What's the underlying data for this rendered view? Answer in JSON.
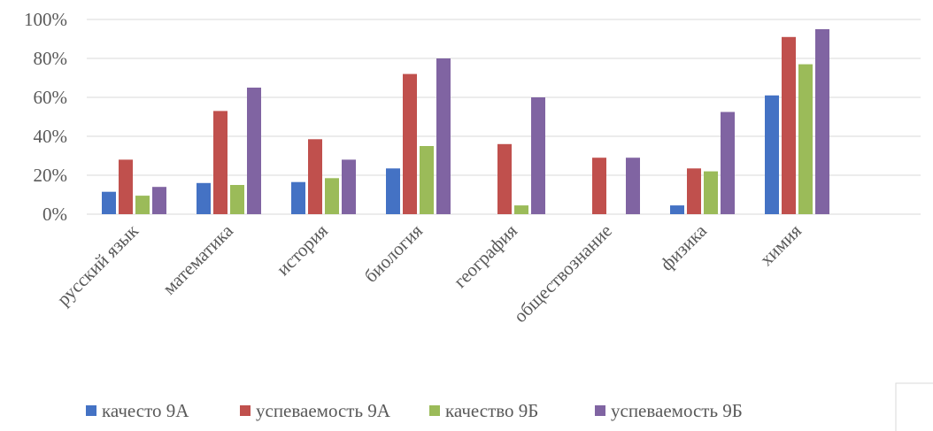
{
  "chart_data": {
    "type": "bar",
    "title": "",
    "xlabel": "",
    "ylabel": "",
    "ylim": [
      0,
      100
    ],
    "y_ticks": [
      "0%",
      "20%",
      "40%",
      "60%",
      "80%",
      "100%"
    ],
    "y_tick_values": [
      0,
      20,
      40,
      60,
      80,
      100
    ],
    "grid": true,
    "legend_position": "bottom",
    "categories": [
      "русский язык",
      "математика",
      "история",
      "биология",
      "география",
      "обществознание",
      "физика",
      "химия"
    ],
    "series": [
      {
        "name": "качесто 9А",
        "color": "#4472C4",
        "values": [
          11.5,
          16,
          16.5,
          23.5,
          0,
          0,
          4.5,
          61
        ]
      },
      {
        "name": "успеваемость 9А",
        "color": "#C0504D",
        "values": [
          28,
          53,
          38.5,
          72,
          36,
          29,
          23.5,
          91
        ]
      },
      {
        "name": "качество 9Б",
        "color": "#9BBB59",
        "values": [
          9.5,
          15,
          18.5,
          35,
          4.5,
          0,
          22,
          77
        ]
      },
      {
        "name": "успеваемость 9Б",
        "color": "#8064A2",
        "values": [
          14,
          65,
          28,
          80,
          60,
          29,
          52.5,
          95
        ]
      }
    ]
  }
}
